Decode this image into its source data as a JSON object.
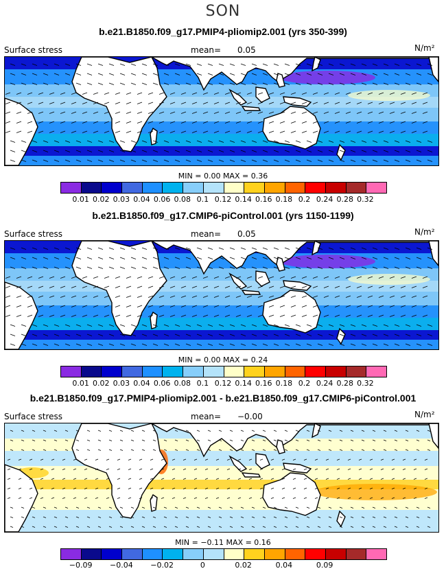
{
  "season": "SON",
  "panels": [
    {
      "title": "b.e21.B1850.f09_g17.PMIP4-pliomip2.001 (yrs 350-399)",
      "variable": "Surface stress",
      "mean_label": "mean=",
      "mean": "0.05",
      "units": "N/m²",
      "minmax": "MIN =    0.00 MAX =    0.36",
      "tick_labels": [
        "0.01",
        "0.02",
        "0.03",
        "0.04",
        "0.06",
        "0.08",
        "0.1",
        "0.12",
        "0.14",
        "0.16",
        "0.18",
        "0.2",
        "0.24",
        "0.28",
        "0.32"
      ]
    },
    {
      "title": "b.e21.B1850.f09_g17.CMIP6-piControl.001 (yrs 1150-1199)",
      "variable": "Surface stress",
      "mean_label": "mean=",
      "mean": "0.05",
      "units": "N/m²",
      "minmax": "MIN =    0.00 MAX =    0.24",
      "tick_labels": [
        "0.01",
        "0.02",
        "0.03",
        "0.04",
        "0.06",
        "0.08",
        "0.1",
        "0.12",
        "0.14",
        "0.16",
        "0.18",
        "0.2",
        "0.24",
        "0.28",
        "0.32"
      ]
    },
    {
      "title": "b.e21.B1850.f09_g17.PMIP4-pliomip2.001 - b.e21.B1850.f09_g17.CMIP6-piControl.001",
      "variable": "Surface stress",
      "mean_label": "mean=",
      "mean": "−0.00",
      "units": "N/m²",
      "minmax": "MIN =   −0.11 MAX =    0.16",
      "tick_labels": [
        "−0.09",
        "",
        "−0.04",
        "",
        "−0.02",
        "",
        "0",
        "",
        "0.02",
        "",
        "0.04",
        "",
        "0.09",
        "",
        ""
      ]
    }
  ],
  "colorbar": {
    "colors": [
      "#8a2be2",
      "#0a0a8c",
      "#0000cd",
      "#4169e1",
      "#1e90ff",
      "#00b2ee",
      "#87cefa",
      "#b4e3fa",
      "#ffffc8",
      "#ffd21e",
      "#ffa500",
      "#ff6400",
      "#ff0000",
      "#c80000",
      "#a52a2a",
      "#ff69b4"
    ]
  },
  "chart_data": [
    {
      "type": "heatmap",
      "title": "b.e21.B1850.f09_g17.PMIP4-pliomip2.001 (yrs 350-399)",
      "variable": "Surface stress",
      "units": "N/m^2",
      "mean": 0.05,
      "min": 0.0,
      "max": 0.36,
      "levels": [
        0.01,
        0.02,
        0.03,
        0.04,
        0.06,
        0.08,
        0.1,
        0.12,
        0.14,
        0.16,
        0.18,
        0.2,
        0.24,
        0.28,
        0.32
      ]
    },
    {
      "type": "heatmap",
      "title": "b.e21.B1850.f09_g17.CMIP6-piControl.001 (yrs 1150-1199)",
      "variable": "Surface stress",
      "units": "N/m^2",
      "mean": 0.05,
      "min": 0.0,
      "max": 0.24,
      "levels": [
        0.01,
        0.02,
        0.03,
        0.04,
        0.06,
        0.08,
        0.1,
        0.12,
        0.14,
        0.16,
        0.18,
        0.2,
        0.24,
        0.28,
        0.32
      ]
    },
    {
      "type": "heatmap",
      "title": "b.e21.B1850.f09_g17.PMIP4-pliomip2.001 - b.e21.B1850.f09_g17.CMIP6-piControl.001",
      "variable": "Surface stress",
      "units": "N/m^2",
      "mean": -0.0,
      "min": -0.11,
      "max": 0.16,
      "levels": [
        -0.09,
        -0.04,
        -0.02,
        0,
        0.02,
        0.04,
        0.09
      ]
    }
  ]
}
